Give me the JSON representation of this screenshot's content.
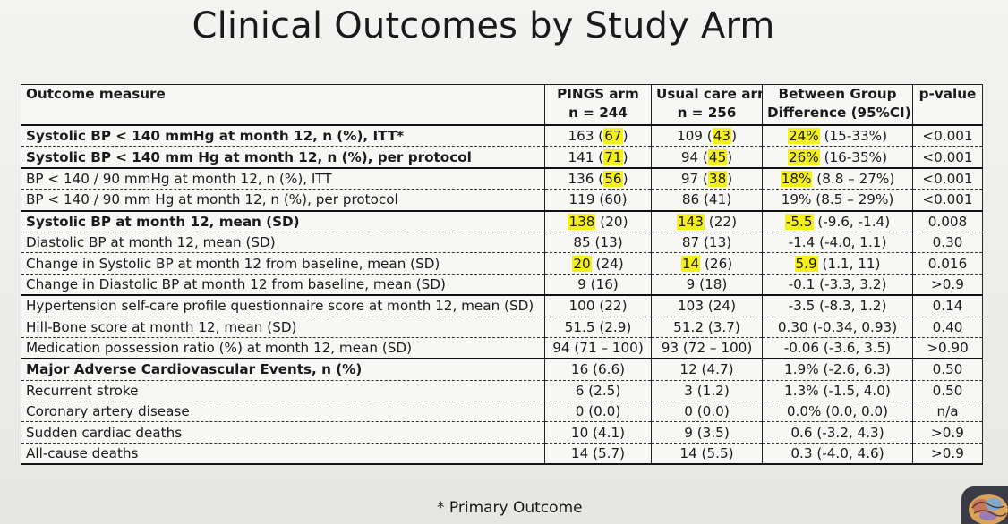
{
  "title": "Clinical Outcomes by Study Arm",
  "footnote": "* Primary Outcome",
  "highlight_color": "#f4f01c",
  "headers": [
    {
      "l1": "Outcome measure",
      "l2": ""
    },
    {
      "l1": "PINGS arm",
      "l2": "n = 244"
    },
    {
      "l1": "Usual care arm",
      "l2": "n = 256"
    },
    {
      "l1": "Between Group",
      "l2": "Difference (95%CI)"
    },
    {
      "l1": "p-value",
      "l2": ""
    }
  ],
  "rows": [
    {
      "bold": true,
      "group_start": true,
      "label": "Systolic BP < 140 mmHg at month 12, n (%), ITT*",
      "pings": [
        "163 (",
        "67",
        ")"
      ],
      "usual": [
        "109 (",
        "43",
        ")"
      ],
      "diff": [
        "",
        "24%",
        " (15-33%)"
      ],
      "p": "<0.001"
    },
    {
      "bold": true,
      "label": "Systolic BP < 140 mm Hg at month 12, n (%), per protocol",
      "pings": [
        "141 (",
        "71",
        ")"
      ],
      "usual": [
        "94 (",
        "45",
        ")"
      ],
      "diff": [
        "",
        "26%",
        " (16-35%)"
      ],
      "p": "<0.001"
    },
    {
      "bold": false,
      "group_start": true,
      "label": "BP < 140 / 90 mmHg at month 12, n (%), ITT",
      "pings": [
        "136 (",
        "56",
        ")"
      ],
      "usual": [
        "97 (",
        "38",
        ")"
      ],
      "diff": [
        "",
        "18%",
        " (8.8 – 27%)"
      ],
      "p": "<0.001"
    },
    {
      "bold": false,
      "label": "BP < 140 / 90 mm Hg at month 12, n (%), per protocol",
      "pings": [
        "119 (60)",
        "",
        ""
      ],
      "usual": [
        "86 (41)",
        "",
        ""
      ],
      "diff": [
        "19% (8.5 – 29%)",
        "",
        ""
      ],
      "p": "<0.001"
    },
    {
      "bold": true,
      "group_start": true,
      "label": "Systolic BP at month 12, mean (SD)",
      "pings": [
        "",
        "138",
        " (20)"
      ],
      "usual": [
        "",
        "143",
        " (22)"
      ],
      "diff": [
        "",
        "-5.5",
        " (-9.6, -1.4)"
      ],
      "p": "0.008"
    },
    {
      "bold": false,
      "label": "Diastolic BP at month 12, mean (SD)",
      "pings": [
        "85 (13)",
        "",
        ""
      ],
      "usual": [
        "87 (13)",
        "",
        ""
      ],
      "diff": [
        "-1.4 (-4.0, 1.1)",
        "",
        ""
      ],
      "p": "0.30"
    },
    {
      "bold": false,
      "label": "Change in Systolic BP at month 12 from baseline, mean (SD)",
      "pings": [
        "",
        "20",
        " (24)"
      ],
      "usual": [
        "",
        "14",
        " (26)"
      ],
      "diff": [
        "",
        "5.9",
        " (1.1, 11)"
      ],
      "p": "0.016"
    },
    {
      "bold": false,
      "label": "Change in Diastolic BP at month 12 from baseline, mean (SD)",
      "pings": [
        "9 (16)",
        "",
        ""
      ],
      "usual": [
        "9 (18)",
        "",
        ""
      ],
      "diff": [
        "-0.1 (-3.3, 3.2)",
        "",
        ""
      ],
      "p": ">0.9"
    },
    {
      "bold": false,
      "group_start": true,
      "label": "Hypertension self-care profile questionnaire score at month 12, mean (SD)",
      "pings": [
        "100 (22)",
        "",
        ""
      ],
      "usual": [
        "103 (24)",
        "",
        ""
      ],
      "diff": [
        "-3.5 (-8.3, 1.2)",
        "",
        ""
      ],
      "p": "0.14"
    },
    {
      "bold": false,
      "label": "Hill-Bone score at month 12, mean (SD)",
      "pings": [
        "51.5 (2.9)",
        "",
        ""
      ],
      "usual": [
        "51.2 (3.7)",
        "",
        ""
      ],
      "diff": [
        "0.30 (-0.34, 0.93)",
        "",
        ""
      ],
      "p": "0.40"
    },
    {
      "bold": false,
      "label": "Medication possession ratio (%) at month 12, mean (SD)",
      "pings": [
        "94 (71 – 100)",
        "",
        ""
      ],
      "usual": [
        "93 (72 – 100)",
        "",
        ""
      ],
      "diff": [
        "-0.06 (-3.6, 3.5)",
        "",
        ""
      ],
      "p": ">0.90"
    },
    {
      "bold": true,
      "group_start": true,
      "label": "Major Adverse Cardiovascular Events, n (%)",
      "pings": [
        "16 (6.6)",
        "",
        ""
      ],
      "usual": [
        "12 (4.7)",
        "",
        ""
      ],
      "diff": [
        "1.9% (-2.6, 6.3)",
        "",
        ""
      ],
      "p": "0.50"
    },
    {
      "bold": false,
      "label": "Recurrent stroke",
      "pings": [
        "6 (2.5)",
        "",
        ""
      ],
      "usual": [
        "3 (1.2)",
        "",
        ""
      ],
      "diff": [
        "1.3% (-1.5, 4.0)",
        "",
        ""
      ],
      "p": "0.50"
    },
    {
      "bold": false,
      "label": "Coronary artery disease",
      "pings": [
        "0 (0.0)",
        "",
        ""
      ],
      "usual": [
        "0 (0.0)",
        "",
        ""
      ],
      "diff": [
        "0.0% (0.0, 0.0)",
        "",
        ""
      ],
      "p": "n/a"
    },
    {
      "bold": false,
      "label": "Sudden cardiac deaths",
      "pings": [
        "10 (4.1)",
        "",
        ""
      ],
      "usual": [
        "9 (3.5)",
        "",
        ""
      ],
      "diff": [
        "0.6 (-3.2, 4.3)",
        "",
        ""
      ],
      "p": ">0.9"
    },
    {
      "bold": false,
      "label": "All-cause deaths",
      "pings": [
        "14 (5.7)",
        "",
        ""
      ],
      "usual": [
        "14 (5.5)",
        "",
        ""
      ],
      "diff": [
        "0.3 (-4.0, 4.6)",
        "",
        ""
      ],
      "p": ">0.9"
    }
  ],
  "logo_icon": "brain-icon"
}
